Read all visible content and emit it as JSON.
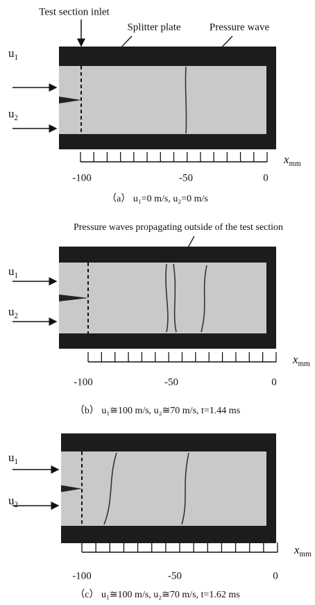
{
  "annotations": {
    "inlet": "Test section inlet",
    "splitter": "Splitter plate",
    "wave": "Pressure wave",
    "waves_outside": "Pressure waves propagating outside of the test section"
  },
  "flow_labels": [
    {
      "base": "u",
      "sub": "1"
    },
    {
      "base": "u",
      "sub": "2"
    }
  ],
  "axis_label": {
    "base": "x",
    "sub": "mm"
  },
  "panels": [
    {
      "tick_labels": [
        "-100",
        "-50",
        "0"
      ],
      "caption": "（a） u₁=0 m/s, u₂=0 m/s"
    },
    {
      "tick_labels": [
        "-100",
        "-50",
        "0"
      ],
      "caption": "（b） u₁≅100 m/s, u₂≅70 m/s, t=1.44 ms"
    },
    {
      "tick_labels": [
        "-100",
        "-50",
        "0"
      ],
      "caption": "（c） u₁≅100 m/s, u₂≅70 m/s, t=1.62 ms"
    }
  ]
}
